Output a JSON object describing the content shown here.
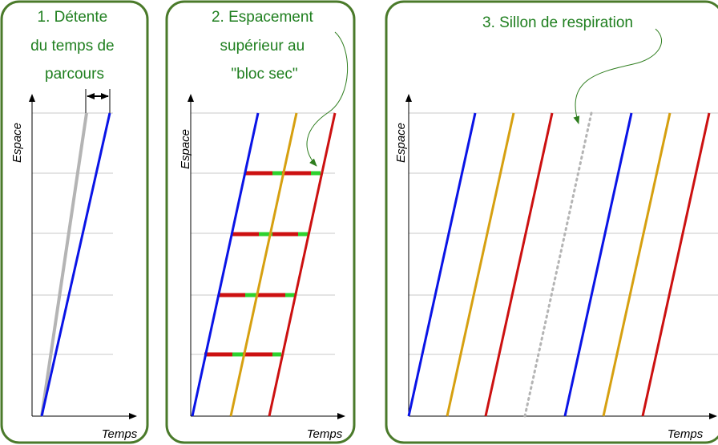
{
  "colors": {
    "frame": "#4a7a2a",
    "title": "#1f7f1f",
    "blue": "#0a14e6",
    "orange": "#d6a010",
    "red": "#cc1111",
    "grey": "#b4b4b4",
    "green": "#2ed12e",
    "grid": "#c8c8c8"
  },
  "panel1": {
    "title_lines": [
      "1. Détente",
      "du temps de",
      "parcours"
    ],
    "ylabel": "Espace",
    "xlabel": "Temps"
  },
  "panel2": {
    "title_lines": [
      "2. Espacement",
      "supérieur au",
      "\"bloc sec\""
    ],
    "ylabel": "Espace",
    "xlabel": "Temps"
  },
  "panel3": {
    "title_lines": [
      "3. Sillon de respiration"
    ],
    "ylabel": "Espace",
    "xlabel": "Temps"
  }
}
